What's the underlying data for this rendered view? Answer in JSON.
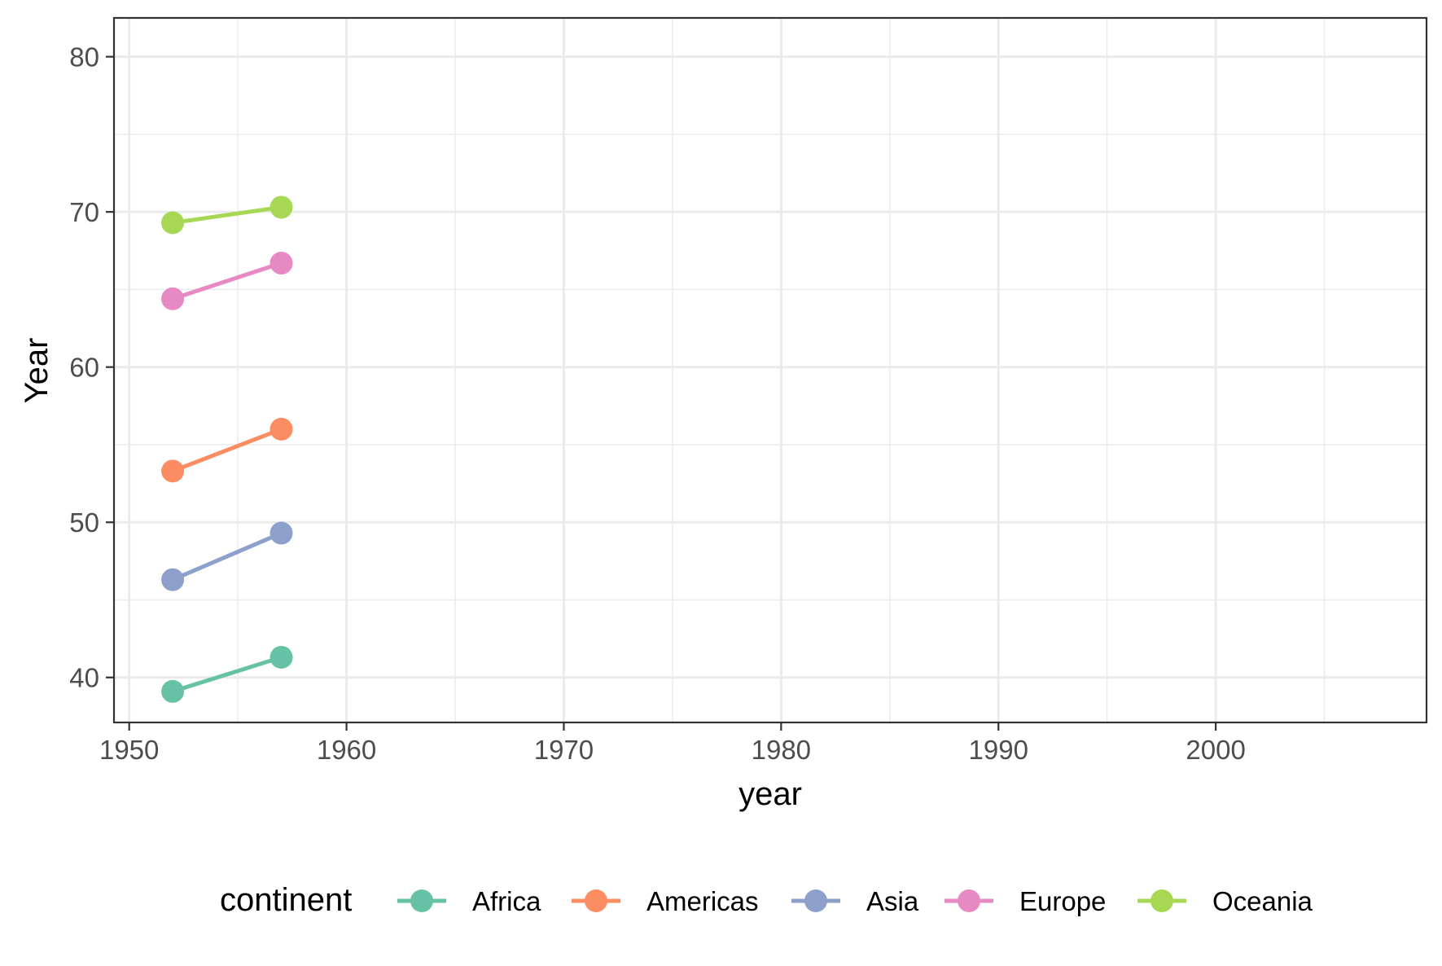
{
  "chart_data": {
    "type": "line",
    "title": "",
    "xlabel": "year",
    "ylabel": "Year",
    "xlim": [
      1949.3,
      2009.7
    ],
    "ylim": [
      37.1,
      82.5
    ],
    "xticks": [
      1950,
      1960,
      1970,
      1980,
      1990,
      2000
    ],
    "yticks": [
      40,
      50,
      60,
      70,
      80
    ],
    "xminor": [
      1955,
      1965,
      1975,
      1985,
      1995,
      2005
    ],
    "yminor": [
      45,
      55,
      65,
      75
    ],
    "grid": true,
    "legend": {
      "title": "continent",
      "position": "bottom"
    },
    "x": [
      1952,
      1957
    ],
    "series": [
      {
        "name": "Africa",
        "color": "#66c2a5",
        "values": [
          39.1,
          41.3
        ]
      },
      {
        "name": "Americas",
        "color": "#fc8d62",
        "values": [
          53.3,
          56.0
        ]
      },
      {
        "name": "Asia",
        "color": "#8da0cb",
        "values": [
          46.3,
          49.3
        ]
      },
      {
        "name": "Europe",
        "color": "#e78ac3",
        "values": [
          64.4,
          66.7
        ]
      },
      {
        "name": "Oceania",
        "color": "#a6d854",
        "values": [
          69.3,
          70.3
        ]
      }
    ]
  }
}
